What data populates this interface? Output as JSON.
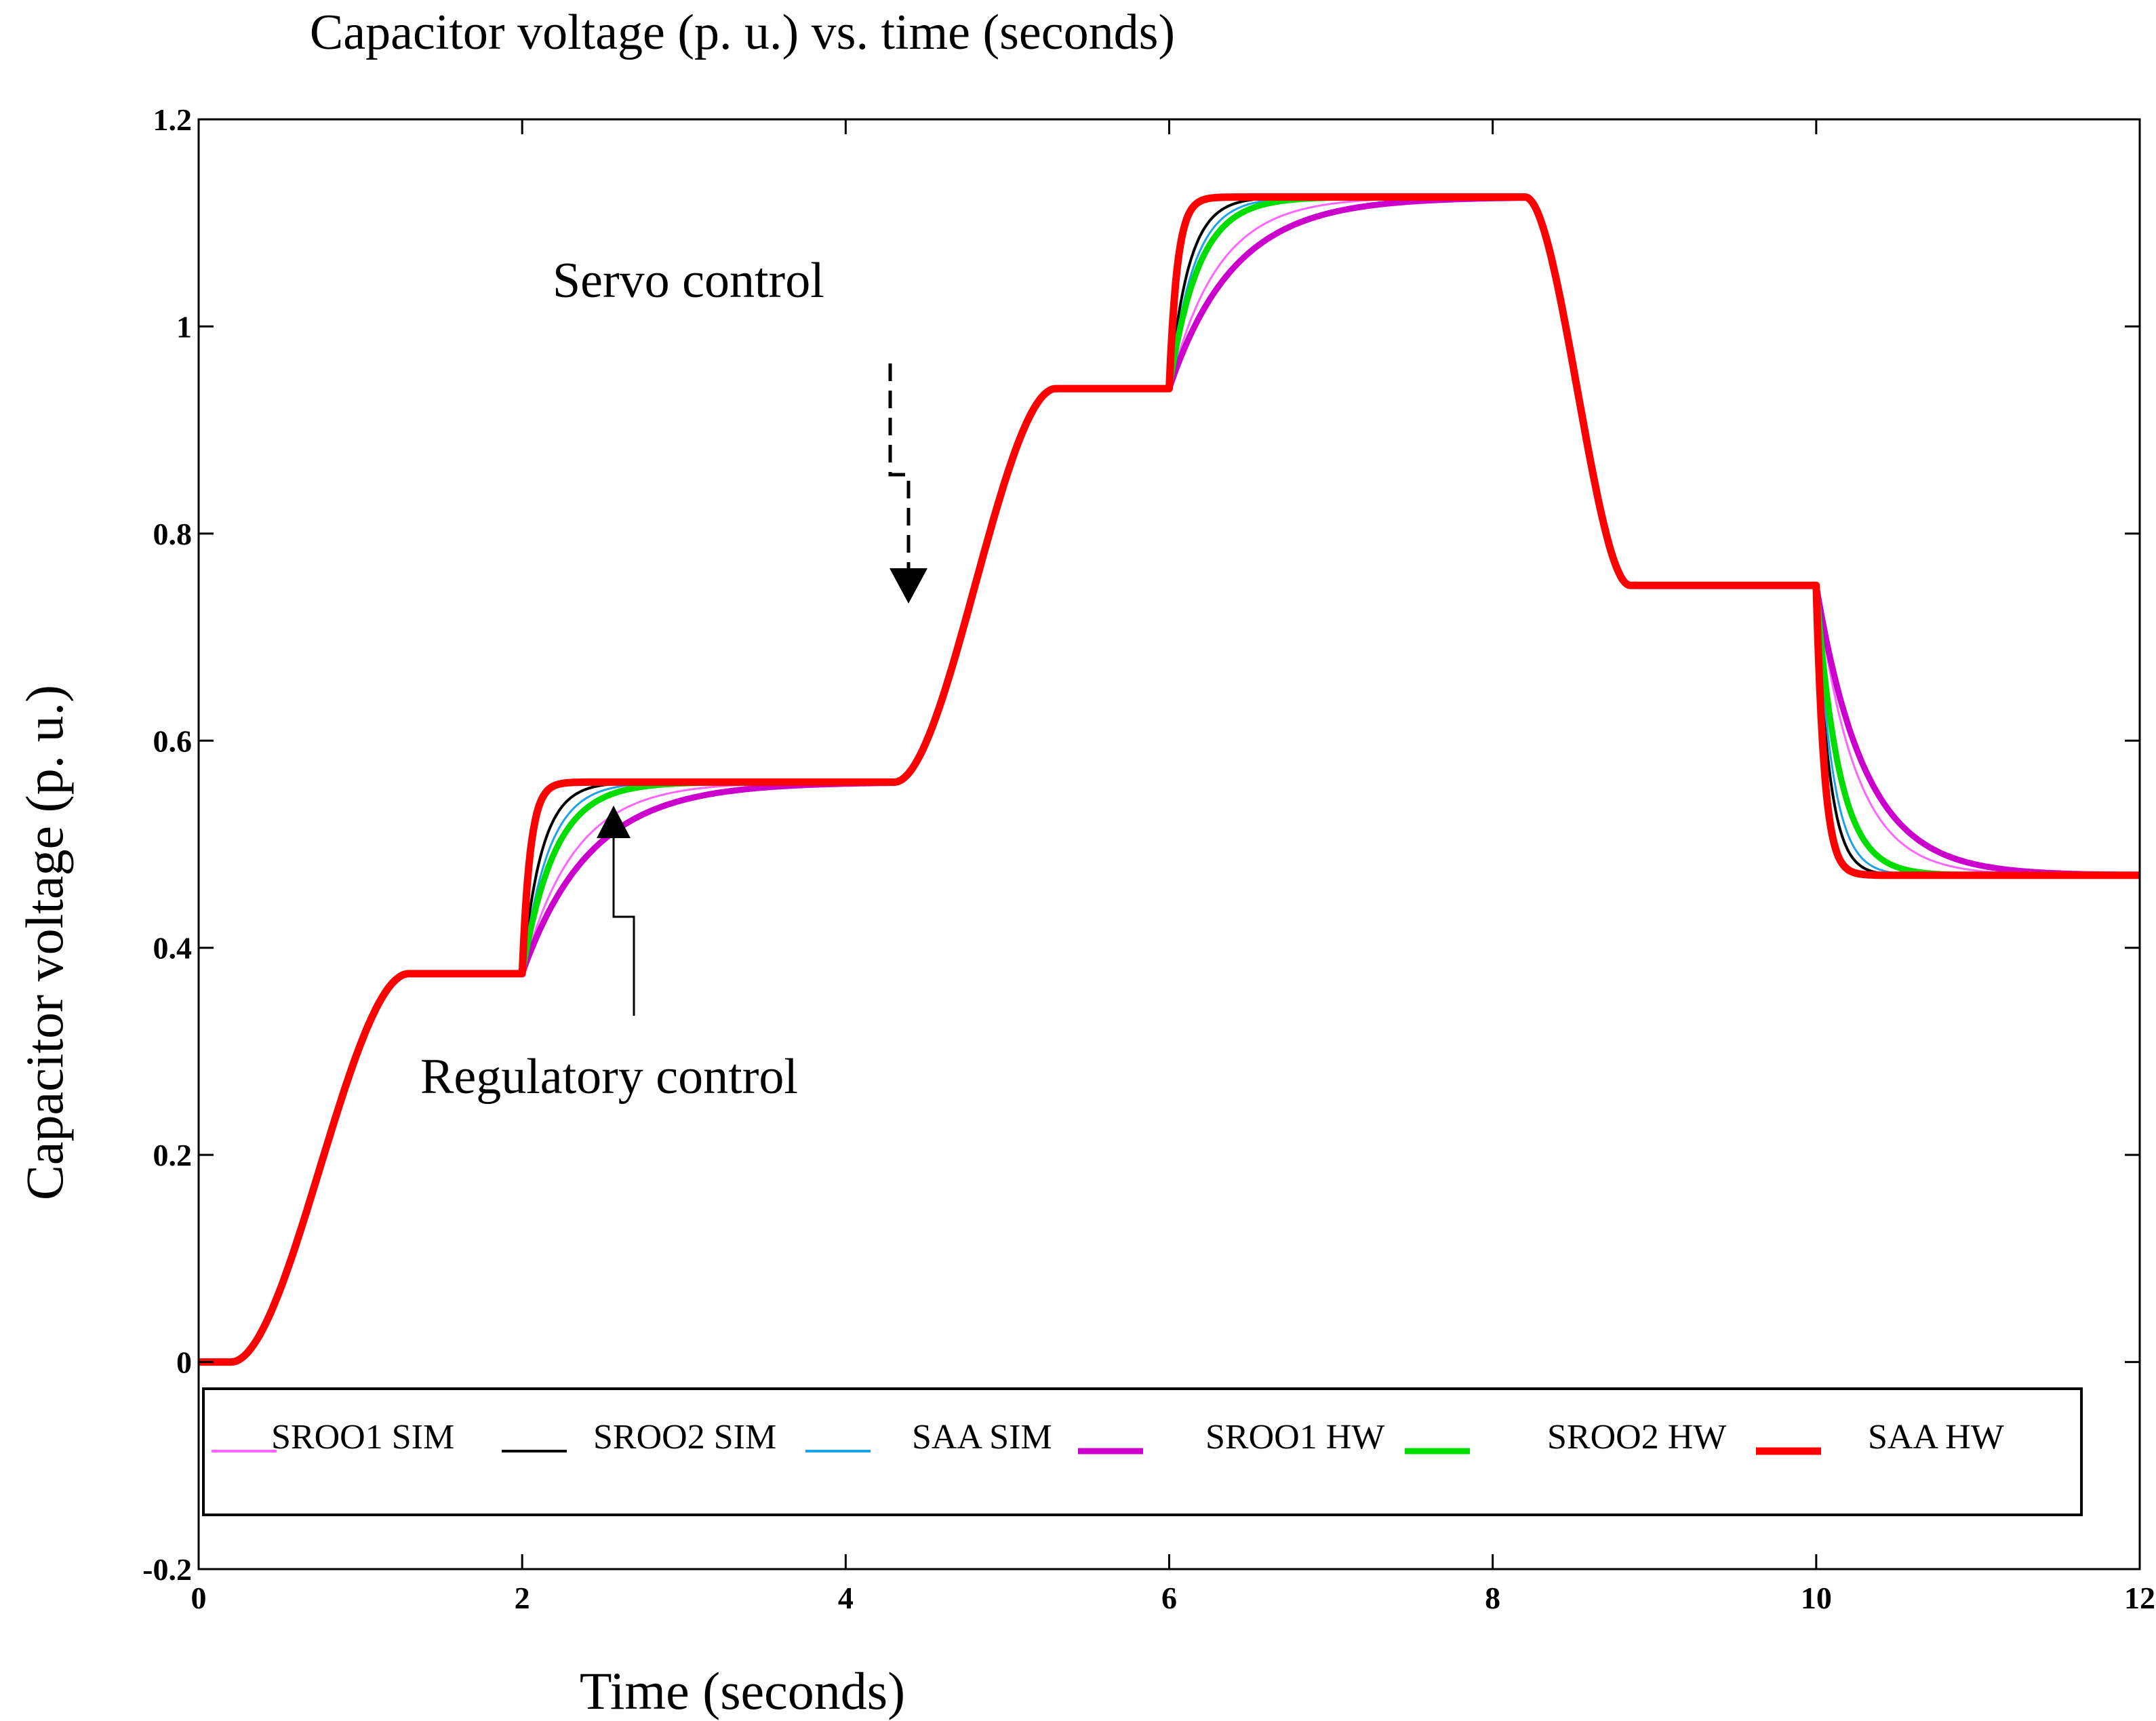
{
  "chart_data": {
    "type": "line",
    "title": "Capacitor voltage (p. u.) vs. time (seconds)",
    "xlabel": "Time (seconds)",
    "ylabel": "Capacitor voltage (p. u.)",
    "xlim": [
      0,
      12
    ],
    "ylim": [
      -0.2,
      1.2
    ],
    "xticks": [
      0,
      2,
      4,
      6,
      8,
      10,
      12
    ],
    "yticks": [
      -0.2,
      0,
      0.2,
      0.4,
      0.6,
      0.8,
      1,
      1.2
    ],
    "xtick_labels": [
      "0",
      "2",
      "4",
      "6",
      "8",
      "10",
      "12"
    ],
    "ytick_labels": [
      "-0.2",
      "0",
      "0.2",
      "0.4",
      "0.6",
      "0.8",
      "1",
      "1.2"
    ],
    "grid": false,
    "legend_position": "bottom",
    "series": [
      {
        "name": "SROO1 SIM",
        "color": "#ff66ff",
        "tau": [
          0.32,
          0.3,
          0.24
        ]
      },
      {
        "name": "SROO2 SIM",
        "color": "#000000",
        "tau": [
          0.12,
          0.12,
          0.08
        ]
      },
      {
        "name": "SAA SIM",
        "color": "#1aa3e6",
        "tau": [
          0.16,
          0.15,
          0.1
        ]
      },
      {
        "name": "SROO1 HW",
        "color": "#cc00cc",
        "tau": [
          0.42,
          0.4,
          0.3
        ]
      },
      {
        "name": "SROO2 HW",
        "color": "#00dd00",
        "tau": [
          0.2,
          0.18,
          0.14
        ]
      },
      {
        "name": "SAA HW",
        "color": "#ff0000",
        "tau": [
          0.05,
          0.05,
          0.05
        ]
      }
    ],
    "setpoint_profile": {
      "t": [
        0,
        2,
        4.3,
        6,
        8.2,
        10
      ],
      "levels": [
        0.375,
        0.56,
        0.94,
        1.125,
        0.75,
        0.47
      ],
      "smooth_ramps": [
        {
          "t0": 0.2,
          "t1": 1.3,
          "from": 0.0,
          "to": 0.375
        },
        {
          "t0": 4.3,
          "t1": 5.3,
          "from": 0.56,
          "to": 0.94
        },
        {
          "t0": 8.2,
          "t1": 8.85,
          "from": 1.125,
          "to": 0.75
        }
      ],
      "step_changes": [
        {
          "t": 2,
          "from": 0.375,
          "to": 0.56
        },
        {
          "t": 6,
          "from": 0.94,
          "to": 1.125
        },
        {
          "t": 10,
          "from": 0.75,
          "to": 0.47
        }
      ]
    },
    "annotations": [
      {
        "text": "Servo control",
        "points_to": {
          "x": 4.45,
          "y": 0.73
        }
      },
      {
        "text": "Regulatory control",
        "points_to": {
          "x": 2.58,
          "y": 0.54
        }
      }
    ]
  }
}
